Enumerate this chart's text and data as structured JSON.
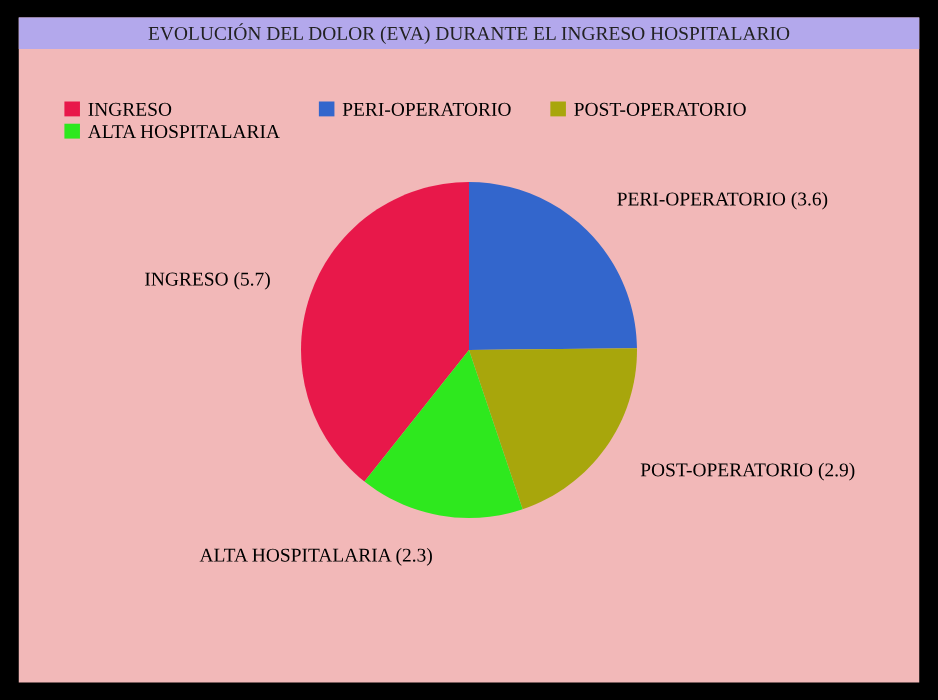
{
  "chart_data": {
    "type": "pie",
    "title": "EVOLUCIÓN DEL DOLOR (EVA) DURANTE EL INGRESO HOSPITALARIO",
    "categories": [
      "INGRESO",
      "PERI-OPERATORIO",
      "POST-OPERATORIO",
      "ALTA HOSPITALARIA"
    ],
    "values": [
      5.7,
      3.6,
      2.9,
      2.3
    ],
    "colors": [
      "#e8184a",
      "#3366cc",
      "#a8a60c",
      "#2ee81e"
    ],
    "value_labels": [
      "INGRESO (5.7)",
      "PERI-OPERATORIO (3.6)",
      "POST-OPERATORIO (2.9)",
      "ALTA HOSPITALARIA (2.3)"
    ],
    "legend": "top left"
  }
}
